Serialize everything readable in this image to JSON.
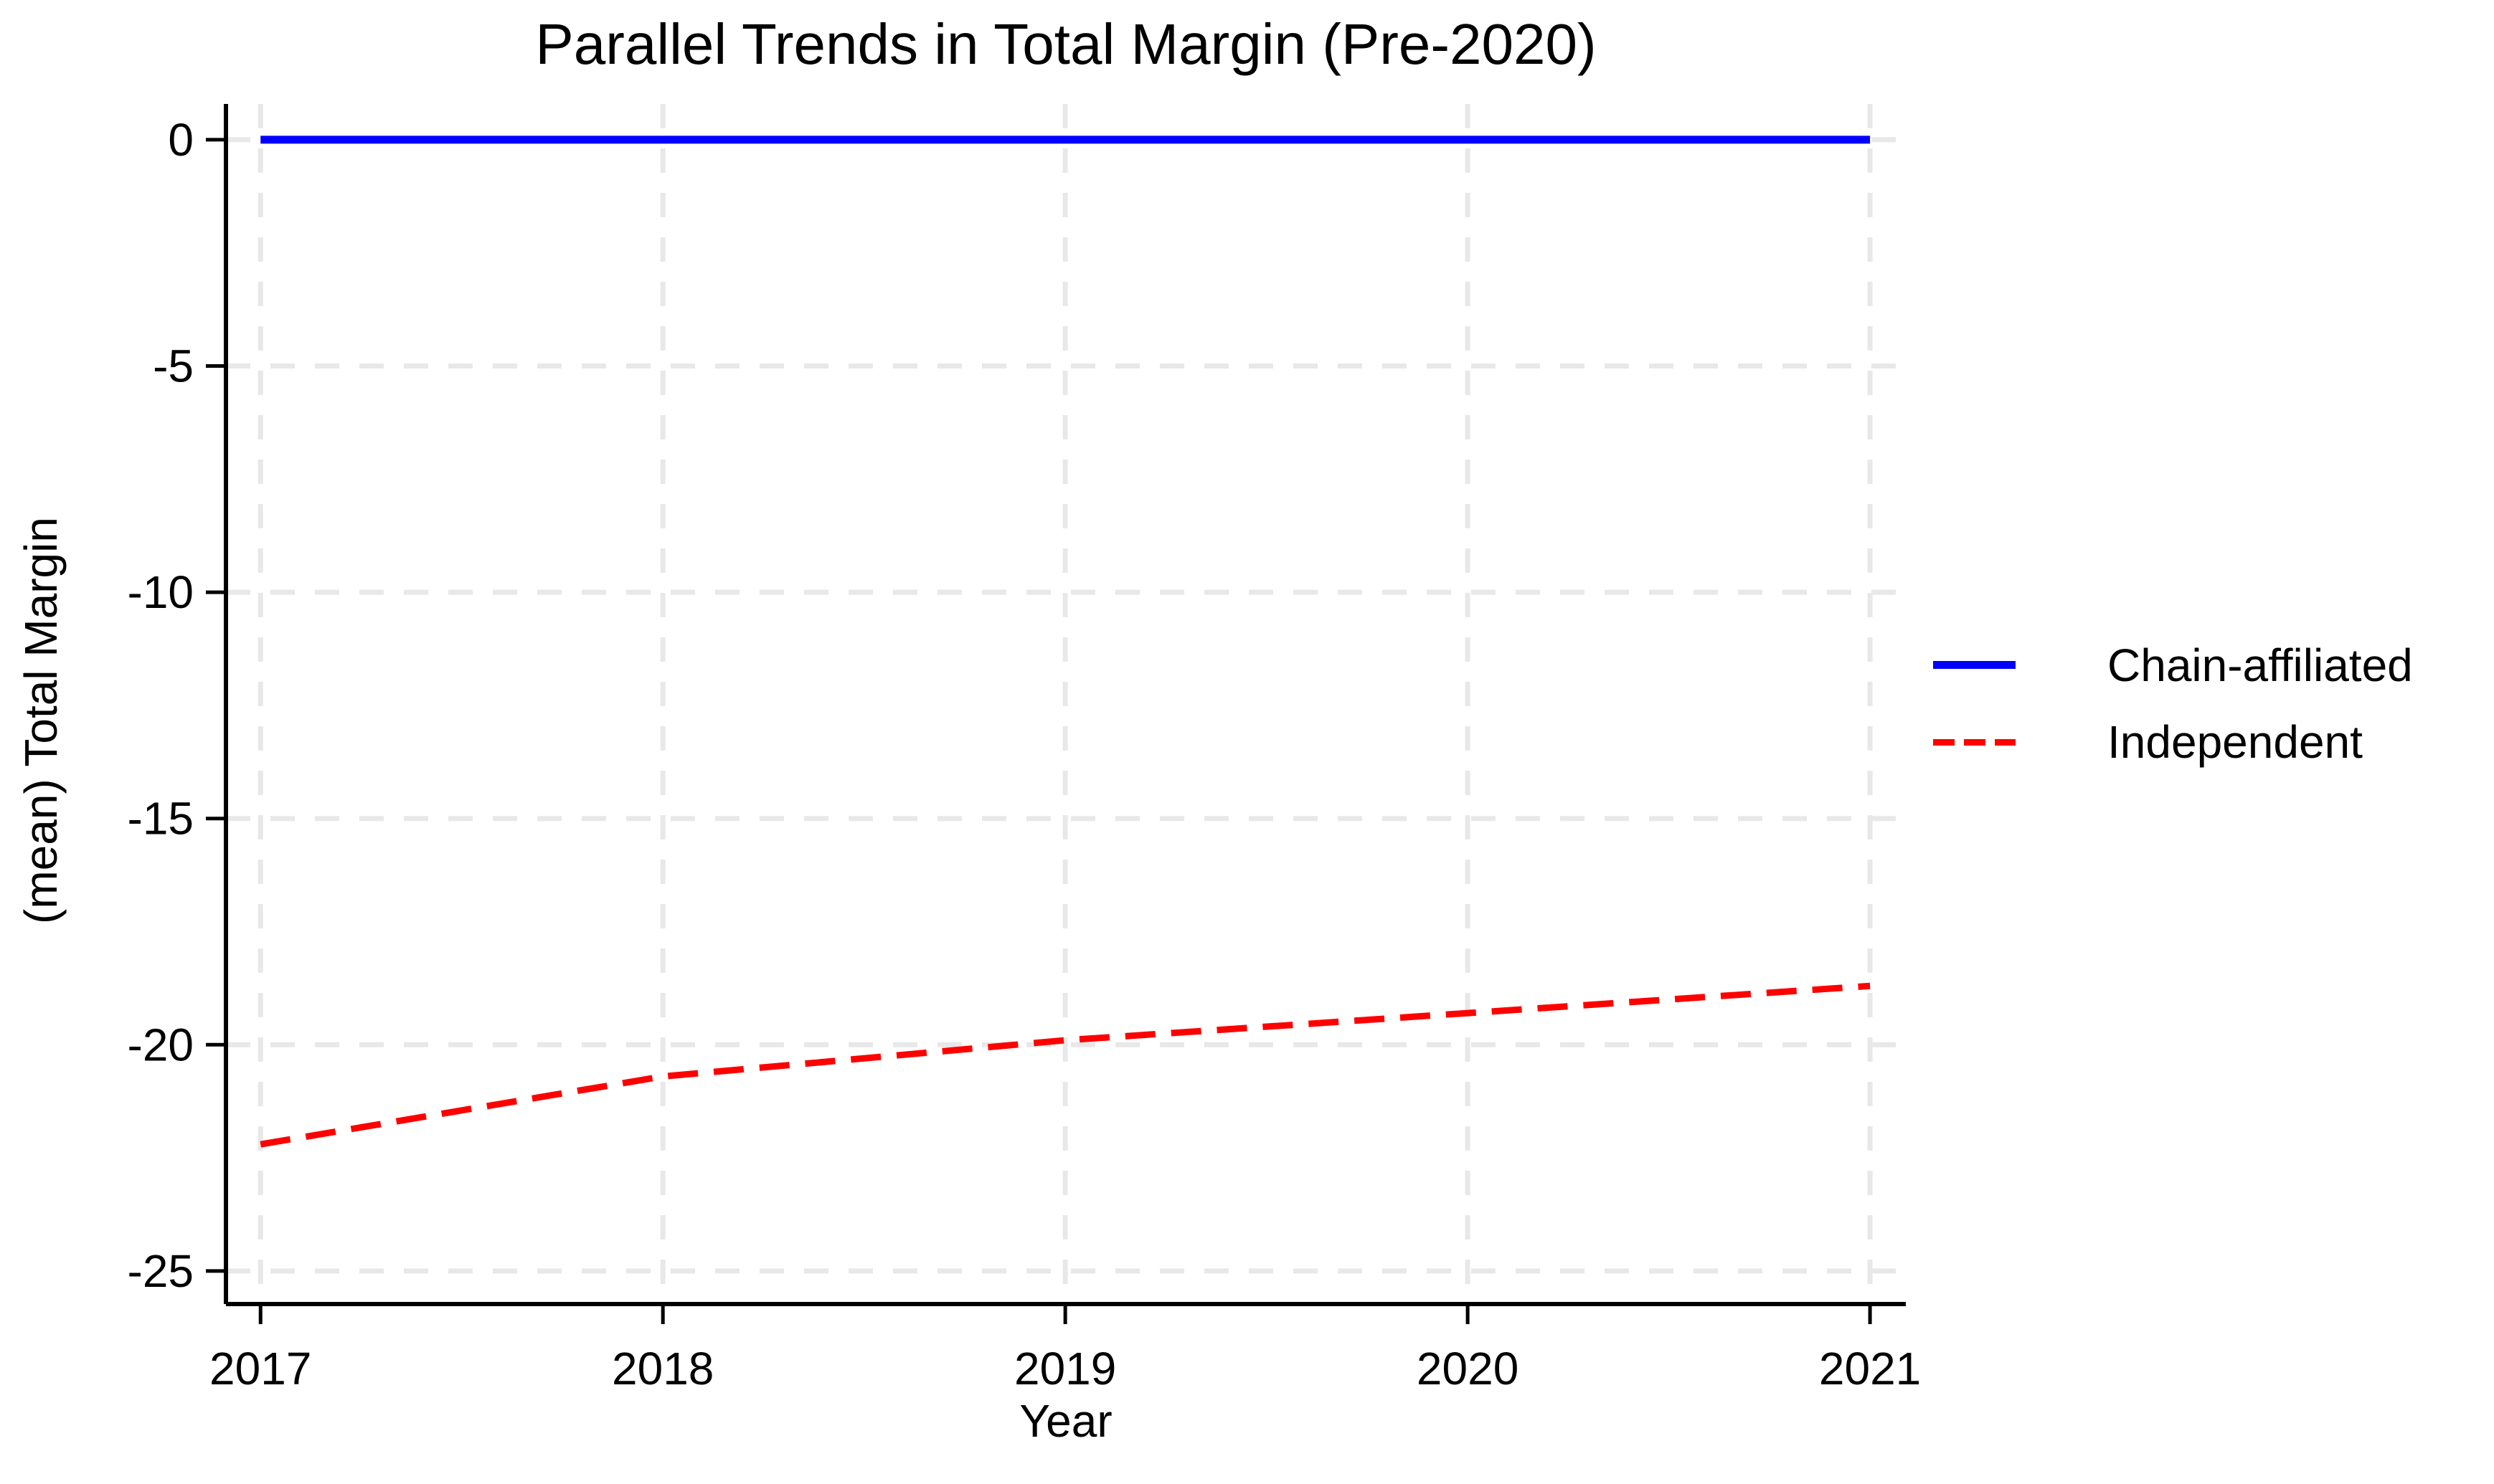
{
  "chart_data": {
    "type": "line",
    "title": "Parallel Trends in Total Margin (Pre-2020)",
    "xlabel": "Year",
    "ylabel": "(mean) Total Margin",
    "x": [
      2017,
      2018,
      2019,
      2020,
      2021
    ],
    "xtick_labels": [
      "2017",
      "2018",
      "2019",
      "2020",
      "2021"
    ],
    "yticks": [
      0,
      -5,
      -10,
      -15,
      -20,
      -25
    ],
    "ytick_labels": [
      "0",
      "-5",
      "-10",
      "-15",
      "-20",
      "-25"
    ],
    "xlim": [
      2016.914,
      2021.089
    ],
    "ylim": [
      -25.73,
      0.79
    ],
    "grid": true,
    "grid_style": "dashed",
    "legend_position": "right",
    "series": [
      {
        "name": "Chain-affiliated",
        "values": [
          0,
          0,
          0,
          0,
          0
        ],
        "color": "#0000ff",
        "style": "solid"
      },
      {
        "name": "Independent",
        "values": [
          -22.2,
          -20.7,
          -19.9,
          -19.3,
          -18.7
        ],
        "color": "#ff0000",
        "style": "dashed"
      }
    ]
  },
  "colors": {
    "series_chain_affiliated": "#0000ff",
    "series_independent": "#ff0000",
    "gridline": "#e8e8e8",
    "axis": "#000000",
    "background": "#ffffff"
  }
}
